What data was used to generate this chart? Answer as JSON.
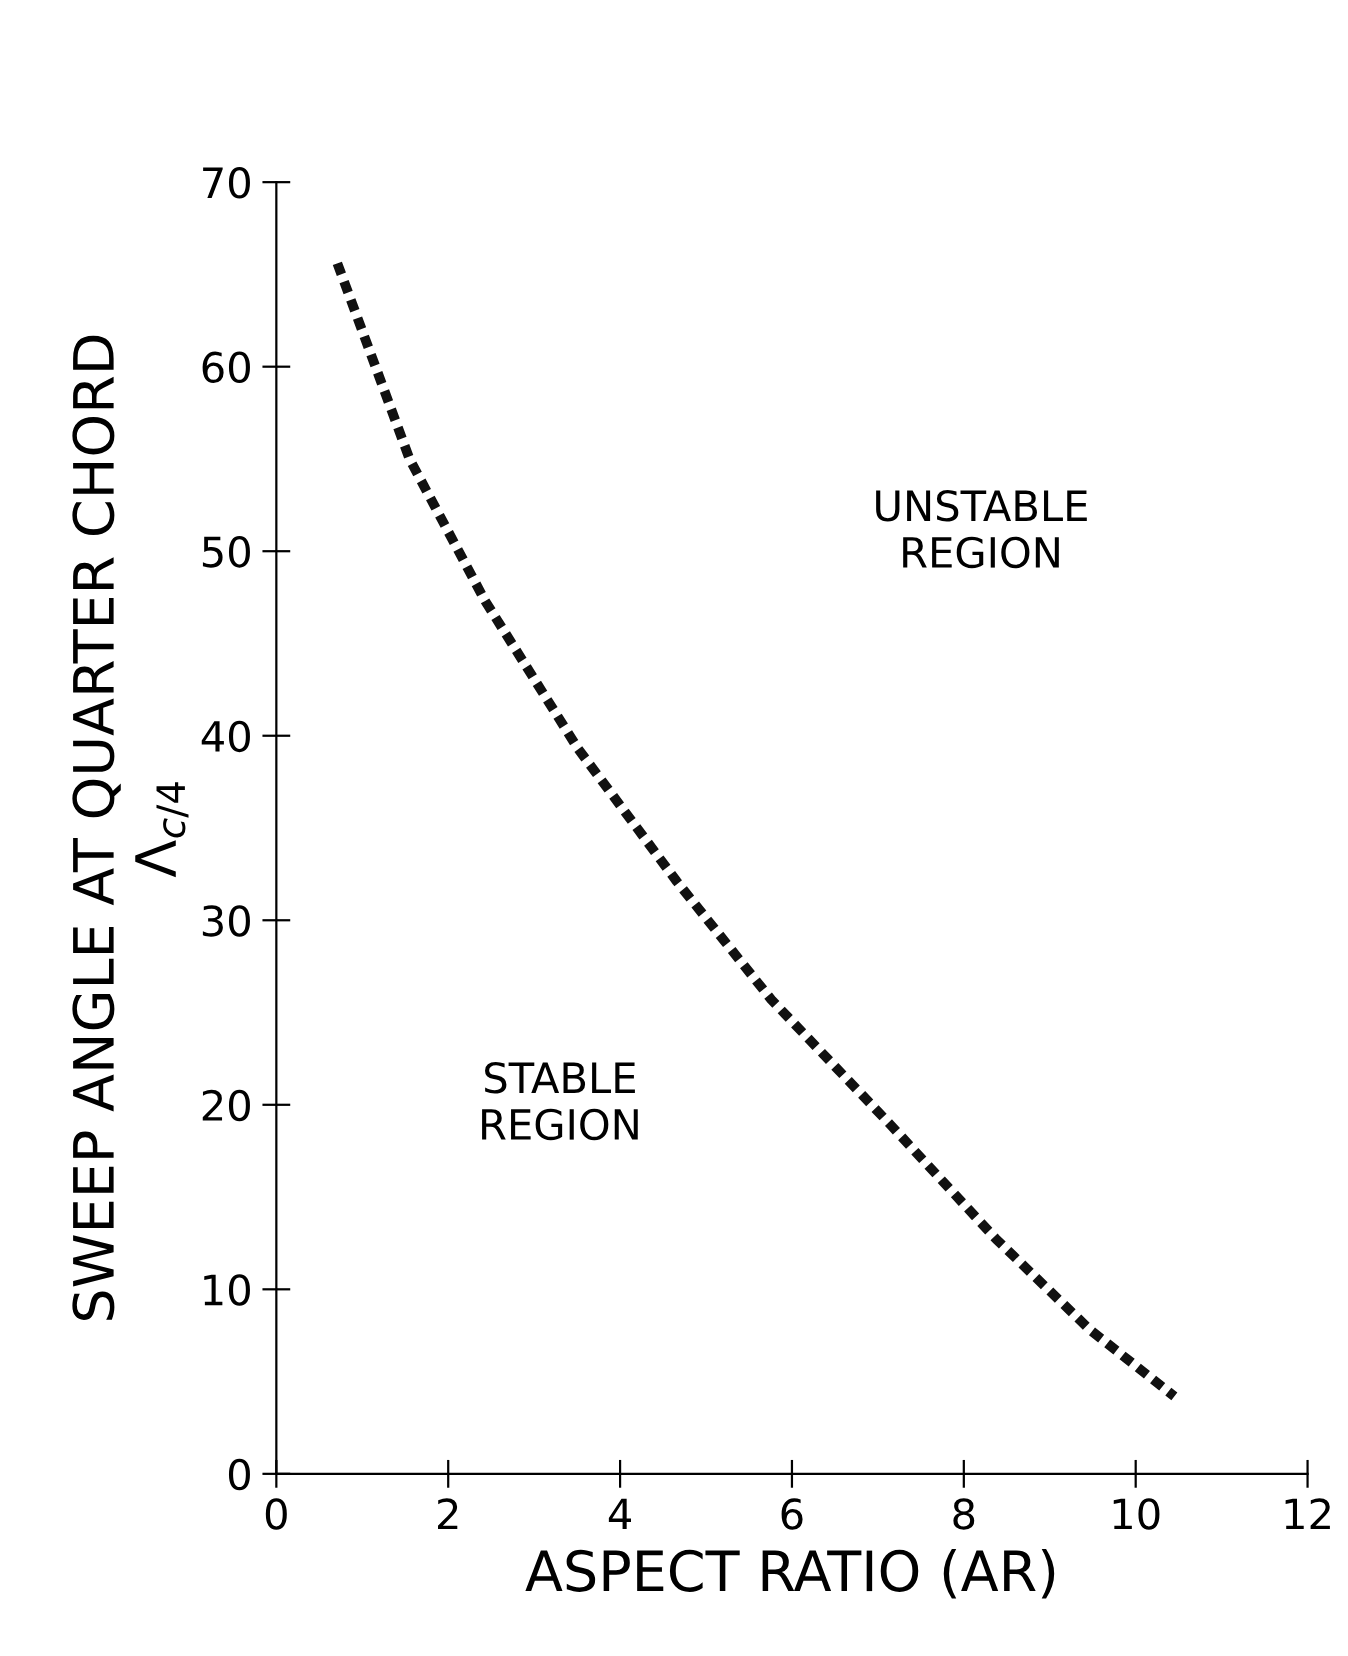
{
  "chart_data": {
    "type": "line",
    "xlabel": "ASPECT RATIO (AR)",
    "ylabel": "SWEEP ANGLE AT QUARTER CHORD\nΛ$_{c/4}$",
    "x": [
      0.71,
      1.55,
      2.43,
      3.51,
      4.66,
      5.76,
      7.13,
      8.38,
      9.47,
      10.45
    ],
    "series": [
      {
        "color": "#111111",
        "values": [
          65.6,
          55.0,
          47.3,
          39.3,
          32.1,
          25.7,
          19.0,
          12.7,
          7.8,
          4.2
        ]
      }
    ],
    "line_style": "dashed",
    "xlim": [
      0,
      12
    ],
    "ylim": [
      0,
      70
    ],
    "xticks": [
      0,
      2,
      4,
      6,
      8,
      10,
      12
    ],
    "yticks": [
      0,
      10,
      20,
      30,
      40,
      50,
      60,
      70
    ],
    "grid": false,
    "annotations": [
      "UNSTABLE\nREGION",
      "STABLE\nREGION"
    ]
  }
}
